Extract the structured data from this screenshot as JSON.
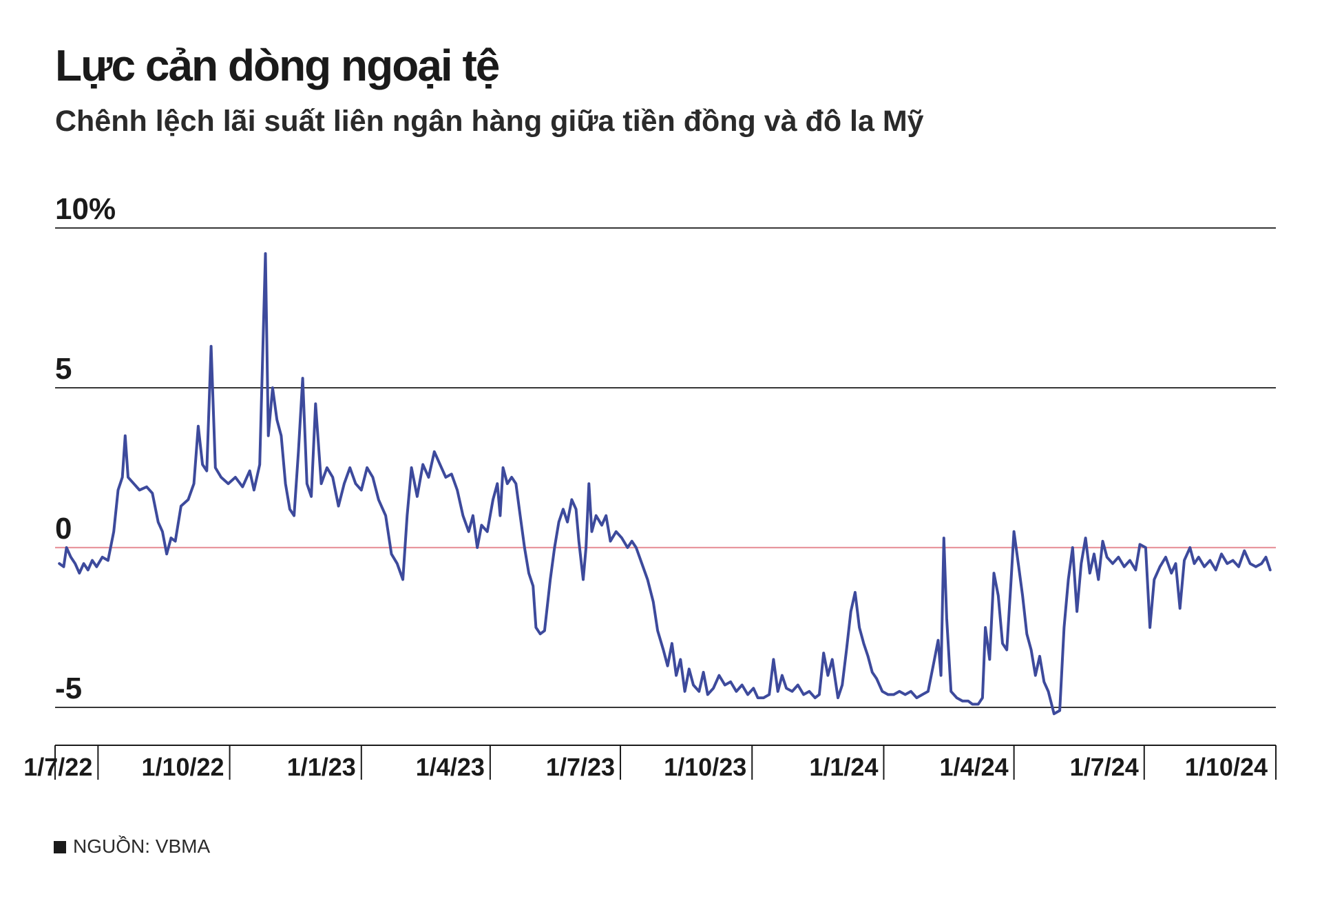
{
  "chart_data": {
    "type": "line",
    "title": "Lực cản dòng ngoại tệ",
    "subtitle": "Chênh lệch lãi suất liên ngân hàng giữa tiền đồng và đô la Mỹ",
    "xlabel": "",
    "ylabel": "",
    "ylim": [
      -5.5,
      10.2
    ],
    "y_ticks": [
      10,
      5,
      0,
      -5
    ],
    "y_tick_labels": [
      "10%",
      "5",
      "0",
      "-5"
    ],
    "x_range": [
      "2022-06-01",
      "2024-10-01"
    ],
    "x_ticks": [
      "2022-07-01",
      "2022-10-01",
      "2023-01-01",
      "2023-04-01",
      "2023-07-01",
      "2023-10-01",
      "2024-01-01",
      "2024-04-01",
      "2024-07-01",
      "2024-10-01"
    ],
    "x_tick_labels": [
      "1/7/22",
      "1/10/22",
      "1/1/23",
      "1/4/23",
      "1/7/23",
      "1/10/23",
      "1/1/24",
      "1/4/24",
      "1/7/24",
      "1/10/24"
    ],
    "grid": true,
    "zero_line_color": "#e8969e",
    "series_color": "#3d4a9c",
    "series": [
      {
        "points": [
          [
            "2022-06-04",
            -0.5
          ],
          [
            "2022-06-07",
            -0.6
          ],
          [
            "2022-06-09",
            0.0
          ],
          [
            "2022-06-12",
            -0.3
          ],
          [
            "2022-06-15",
            -0.5
          ],
          [
            "2022-06-18",
            -0.8
          ],
          [
            "2022-06-21",
            -0.5
          ],
          [
            "2022-06-24",
            -0.7
          ],
          [
            "2022-06-27",
            -0.4
          ],
          [
            "2022-06-30",
            -0.6
          ],
          [
            "2022-07-04",
            -0.3
          ],
          [
            "2022-07-08",
            -0.4
          ],
          [
            "2022-07-12",
            0.5
          ],
          [
            "2022-07-15",
            1.8
          ],
          [
            "2022-07-18",
            2.2
          ],
          [
            "2022-07-20",
            3.5
          ],
          [
            "2022-07-22",
            2.2
          ],
          [
            "2022-07-26",
            2.0
          ],
          [
            "2022-07-30",
            1.8
          ],
          [
            "2022-08-04",
            1.9
          ],
          [
            "2022-08-08",
            1.7
          ],
          [
            "2022-08-12",
            0.8
          ],
          [
            "2022-08-15",
            0.5
          ],
          [
            "2022-08-18",
            -0.2
          ],
          [
            "2022-08-21",
            0.3
          ],
          [
            "2022-08-24",
            0.2
          ],
          [
            "2022-08-28",
            1.3
          ],
          [
            "2022-09-02",
            1.5
          ],
          [
            "2022-09-06",
            2.0
          ],
          [
            "2022-09-09",
            3.8
          ],
          [
            "2022-09-12",
            2.6
          ],
          [
            "2022-09-15",
            2.4
          ],
          [
            "2022-09-18",
            6.3
          ],
          [
            "2022-09-21",
            2.5
          ],
          [
            "2022-09-25",
            2.2
          ],
          [
            "2022-09-30",
            2.0
          ],
          [
            "2022-10-05",
            2.2
          ],
          [
            "2022-10-10",
            1.9
          ],
          [
            "2022-10-15",
            2.4
          ],
          [
            "2022-10-18",
            1.8
          ],
          [
            "2022-10-22",
            2.6
          ],
          [
            "2022-10-26",
            9.2
          ],
          [
            "2022-10-28",
            3.5
          ],
          [
            "2022-10-31",
            5.0
          ],
          [
            "2022-11-03",
            4.0
          ],
          [
            "2022-11-06",
            3.5
          ],
          [
            "2022-11-09",
            2.0
          ],
          [
            "2022-11-12",
            1.2
          ],
          [
            "2022-11-15",
            1.0
          ],
          [
            "2022-11-18",
            3.0
          ],
          [
            "2022-11-21",
            5.3
          ],
          [
            "2022-11-24",
            2.0
          ],
          [
            "2022-11-27",
            1.6
          ],
          [
            "2022-11-30",
            4.5
          ],
          [
            "2022-12-04",
            2.0
          ],
          [
            "2022-12-08",
            2.5
          ],
          [
            "2022-12-12",
            2.2
          ],
          [
            "2022-12-16",
            1.3
          ],
          [
            "2022-12-20",
            2.0
          ],
          [
            "2022-12-24",
            2.5
          ],
          [
            "2022-12-28",
            2.0
          ],
          [
            "2023-01-01",
            1.8
          ],
          [
            "2023-01-05",
            2.5
          ],
          [
            "2023-01-09",
            2.2
          ],
          [
            "2023-01-13",
            1.5
          ],
          [
            "2023-01-18",
            1.0
          ],
          [
            "2023-01-22",
            -0.2
          ],
          [
            "2023-01-26",
            -0.5
          ],
          [
            "2023-01-30",
            -1.0
          ],
          [
            "2023-02-02",
            1.0
          ],
          [
            "2023-02-05",
            2.5
          ],
          [
            "2023-02-09",
            1.6
          ],
          [
            "2023-02-13",
            2.6
          ],
          [
            "2023-02-17",
            2.2
          ],
          [
            "2023-02-21",
            3.0
          ],
          [
            "2023-02-25",
            2.6
          ],
          [
            "2023-03-01",
            2.2
          ],
          [
            "2023-03-05",
            2.3
          ],
          [
            "2023-03-09",
            1.8
          ],
          [
            "2023-03-13",
            1.0
          ],
          [
            "2023-03-17",
            0.5
          ],
          [
            "2023-03-20",
            1.0
          ],
          [
            "2023-03-23",
            0.0
          ],
          [
            "2023-03-26",
            0.7
          ],
          [
            "2023-03-30",
            0.5
          ],
          [
            "2023-04-03",
            1.5
          ],
          [
            "2023-04-06",
            2.0
          ],
          [
            "2023-04-08",
            1.0
          ],
          [
            "2023-04-10",
            2.5
          ],
          [
            "2023-04-13",
            2.0
          ],
          [
            "2023-04-16",
            2.2
          ],
          [
            "2023-04-19",
            2.0
          ],
          [
            "2023-04-22",
            1.0
          ],
          [
            "2023-04-25",
            0.0
          ],
          [
            "2023-04-28",
            -0.8
          ],
          [
            "2023-05-01",
            -1.2
          ],
          [
            "2023-05-03",
            -2.5
          ],
          [
            "2023-05-06",
            -2.7
          ],
          [
            "2023-05-09",
            -2.6
          ],
          [
            "2023-05-13",
            -1.0
          ],
          [
            "2023-05-16",
            0.0
          ],
          [
            "2023-05-19",
            0.8
          ],
          [
            "2023-05-22",
            1.2
          ],
          [
            "2023-05-25",
            0.8
          ],
          [
            "2023-05-28",
            1.5
          ],
          [
            "2023-05-31",
            1.2
          ],
          [
            "2023-06-02",
            0.2
          ],
          [
            "2023-06-05",
            -1.0
          ],
          [
            "2023-06-07",
            0.0
          ],
          [
            "2023-06-09",
            2.0
          ],
          [
            "2023-06-11",
            0.5
          ],
          [
            "2023-06-14",
            1.0
          ],
          [
            "2023-06-18",
            0.7
          ],
          [
            "2023-06-21",
            1.0
          ],
          [
            "2023-06-24",
            0.2
          ],
          [
            "2023-06-28",
            0.5
          ],
          [
            "2023-07-02",
            0.3
          ],
          [
            "2023-07-06",
            0.0
          ],
          [
            "2023-07-09",
            0.2
          ],
          [
            "2023-07-12",
            0.0
          ],
          [
            "2023-07-16",
            -0.5
          ],
          [
            "2023-07-20",
            -1.0
          ],
          [
            "2023-07-24",
            -1.7
          ],
          [
            "2023-07-27",
            -2.6
          ],
          [
            "2023-07-31",
            -3.2
          ],
          [
            "2023-08-03",
            -3.7
          ],
          [
            "2023-08-06",
            -3.0
          ],
          [
            "2023-08-09",
            -4.0
          ],
          [
            "2023-08-12",
            -3.5
          ],
          [
            "2023-08-15",
            -4.5
          ],
          [
            "2023-08-18",
            -3.8
          ],
          [
            "2023-08-21",
            -4.3
          ],
          [
            "2023-08-25",
            -4.5
          ],
          [
            "2023-08-28",
            -3.9
          ],
          [
            "2023-08-31",
            -4.6
          ],
          [
            "2023-09-04",
            -4.4
          ],
          [
            "2023-09-08",
            -4.0
          ],
          [
            "2023-09-12",
            -4.3
          ],
          [
            "2023-09-16",
            -4.2
          ],
          [
            "2023-09-20",
            -4.5
          ],
          [
            "2023-09-24",
            -4.3
          ],
          [
            "2023-09-28",
            -4.6
          ],
          [
            "2023-10-02",
            -4.4
          ],
          [
            "2023-10-05",
            -4.7
          ],
          [
            "2023-10-09",
            -4.7
          ],
          [
            "2023-10-13",
            -4.6
          ],
          [
            "2023-10-16",
            -3.5
          ],
          [
            "2023-10-19",
            -4.5
          ],
          [
            "2023-10-22",
            -4.0
          ],
          [
            "2023-10-25",
            -4.4
          ],
          [
            "2023-10-29",
            -4.5
          ],
          [
            "2023-11-02",
            -4.3
          ],
          [
            "2023-11-06",
            -4.6
          ],
          [
            "2023-11-10",
            -4.5
          ],
          [
            "2023-11-14",
            -4.7
          ],
          [
            "2023-11-17",
            -4.6
          ],
          [
            "2023-11-20",
            -3.3
          ],
          [
            "2023-11-23",
            -4.0
          ],
          [
            "2023-11-26",
            -3.5
          ],
          [
            "2023-11-30",
            -4.7
          ],
          [
            "2023-12-03",
            -4.3
          ],
          [
            "2023-12-06",
            -3.2
          ],
          [
            "2023-12-09",
            -2.0
          ],
          [
            "2023-12-12",
            -1.4
          ],
          [
            "2023-12-15",
            -2.5
          ],
          [
            "2023-12-18",
            -3.0
          ],
          [
            "2023-12-21",
            -3.4
          ],
          [
            "2023-12-24",
            -3.9
          ],
          [
            "2023-12-27",
            -4.1
          ],
          [
            "2023-12-31",
            -4.5
          ],
          [
            "2024-01-04",
            -4.6
          ],
          [
            "2024-01-08",
            -4.6
          ],
          [
            "2024-01-12",
            -4.5
          ],
          [
            "2024-01-16",
            -4.6
          ],
          [
            "2024-01-20",
            -4.5
          ],
          [
            "2024-01-24",
            -4.7
          ],
          [
            "2024-01-28",
            -4.6
          ],
          [
            "2024-02-01",
            -4.5
          ],
          [
            "2024-02-05",
            -3.6
          ],
          [
            "2024-02-08",
            -2.9
          ],
          [
            "2024-02-10",
            -4.0
          ],
          [
            "2024-02-12",
            0.3
          ],
          [
            "2024-02-14",
            -2.2
          ],
          [
            "2024-02-17",
            -4.5
          ],
          [
            "2024-02-21",
            -4.7
          ],
          [
            "2024-02-25",
            -4.8
          ],
          [
            "2024-02-29",
            -4.8
          ],
          [
            "2024-03-03",
            -4.9
          ],
          [
            "2024-03-07",
            -4.9
          ],
          [
            "2024-03-10",
            -4.7
          ],
          [
            "2024-03-12",
            -2.5
          ],
          [
            "2024-03-15",
            -3.5
          ],
          [
            "2024-03-18",
            -0.8
          ],
          [
            "2024-03-21",
            -1.5
          ],
          [
            "2024-03-24",
            -3.0
          ],
          [
            "2024-03-27",
            -3.2
          ],
          [
            "2024-03-30",
            -1.0
          ],
          [
            "2024-04-01",
            0.5
          ],
          [
            "2024-04-04",
            -0.5
          ],
          [
            "2024-04-07",
            -1.5
          ],
          [
            "2024-04-10",
            -2.7
          ],
          [
            "2024-04-13",
            -3.2
          ],
          [
            "2024-04-16",
            -4.0
          ],
          [
            "2024-04-19",
            -3.4
          ],
          [
            "2024-04-22",
            -4.2
          ],
          [
            "2024-04-25",
            -4.5
          ],
          [
            "2024-04-29",
            -5.2
          ],
          [
            "2024-05-03",
            -5.1
          ],
          [
            "2024-05-06",
            -2.5
          ],
          [
            "2024-05-09",
            -1.0
          ],
          [
            "2024-05-12",
            0.0
          ],
          [
            "2024-05-15",
            -2.0
          ],
          [
            "2024-05-18",
            -0.5
          ],
          [
            "2024-05-21",
            0.3
          ],
          [
            "2024-05-24",
            -0.8
          ],
          [
            "2024-05-27",
            -0.2
          ],
          [
            "2024-05-30",
            -1.0
          ],
          [
            "2024-06-02",
            0.2
          ],
          [
            "2024-06-05",
            -0.3
          ],
          [
            "2024-06-09",
            -0.5
          ],
          [
            "2024-06-13",
            -0.3
          ],
          [
            "2024-06-17",
            -0.6
          ],
          [
            "2024-06-21",
            -0.4
          ],
          [
            "2024-06-25",
            -0.7
          ],
          [
            "2024-06-28",
            0.1
          ],
          [
            "2024-07-02",
            0.0
          ],
          [
            "2024-07-05",
            -2.5
          ],
          [
            "2024-07-08",
            -1.0
          ],
          [
            "2024-07-12",
            -0.6
          ],
          [
            "2024-07-16",
            -0.3
          ],
          [
            "2024-07-20",
            -0.8
          ],
          [
            "2024-07-23",
            -0.5
          ],
          [
            "2024-07-26",
            -1.9
          ],
          [
            "2024-07-29",
            -0.4
          ],
          [
            "2024-08-02",
            0.0
          ],
          [
            "2024-08-05",
            -0.5
          ],
          [
            "2024-08-08",
            -0.3
          ],
          [
            "2024-08-12",
            -0.6
          ],
          [
            "2024-08-16",
            -0.4
          ],
          [
            "2024-08-20",
            -0.7
          ],
          [
            "2024-08-24",
            -0.2
          ],
          [
            "2024-08-28",
            -0.5
          ],
          [
            "2024-09-01",
            -0.4
          ],
          [
            "2024-09-05",
            -0.6
          ],
          [
            "2024-09-09",
            -0.1
          ],
          [
            "2024-09-13",
            -0.5
          ],
          [
            "2024-09-17",
            -0.6
          ],
          [
            "2024-09-21",
            -0.5
          ],
          [
            "2024-09-24",
            -0.3
          ],
          [
            "2024-09-27",
            -0.7
          ]
        ]
      }
    ]
  },
  "footer": {
    "source": "NGUỒN: VBMA"
  }
}
